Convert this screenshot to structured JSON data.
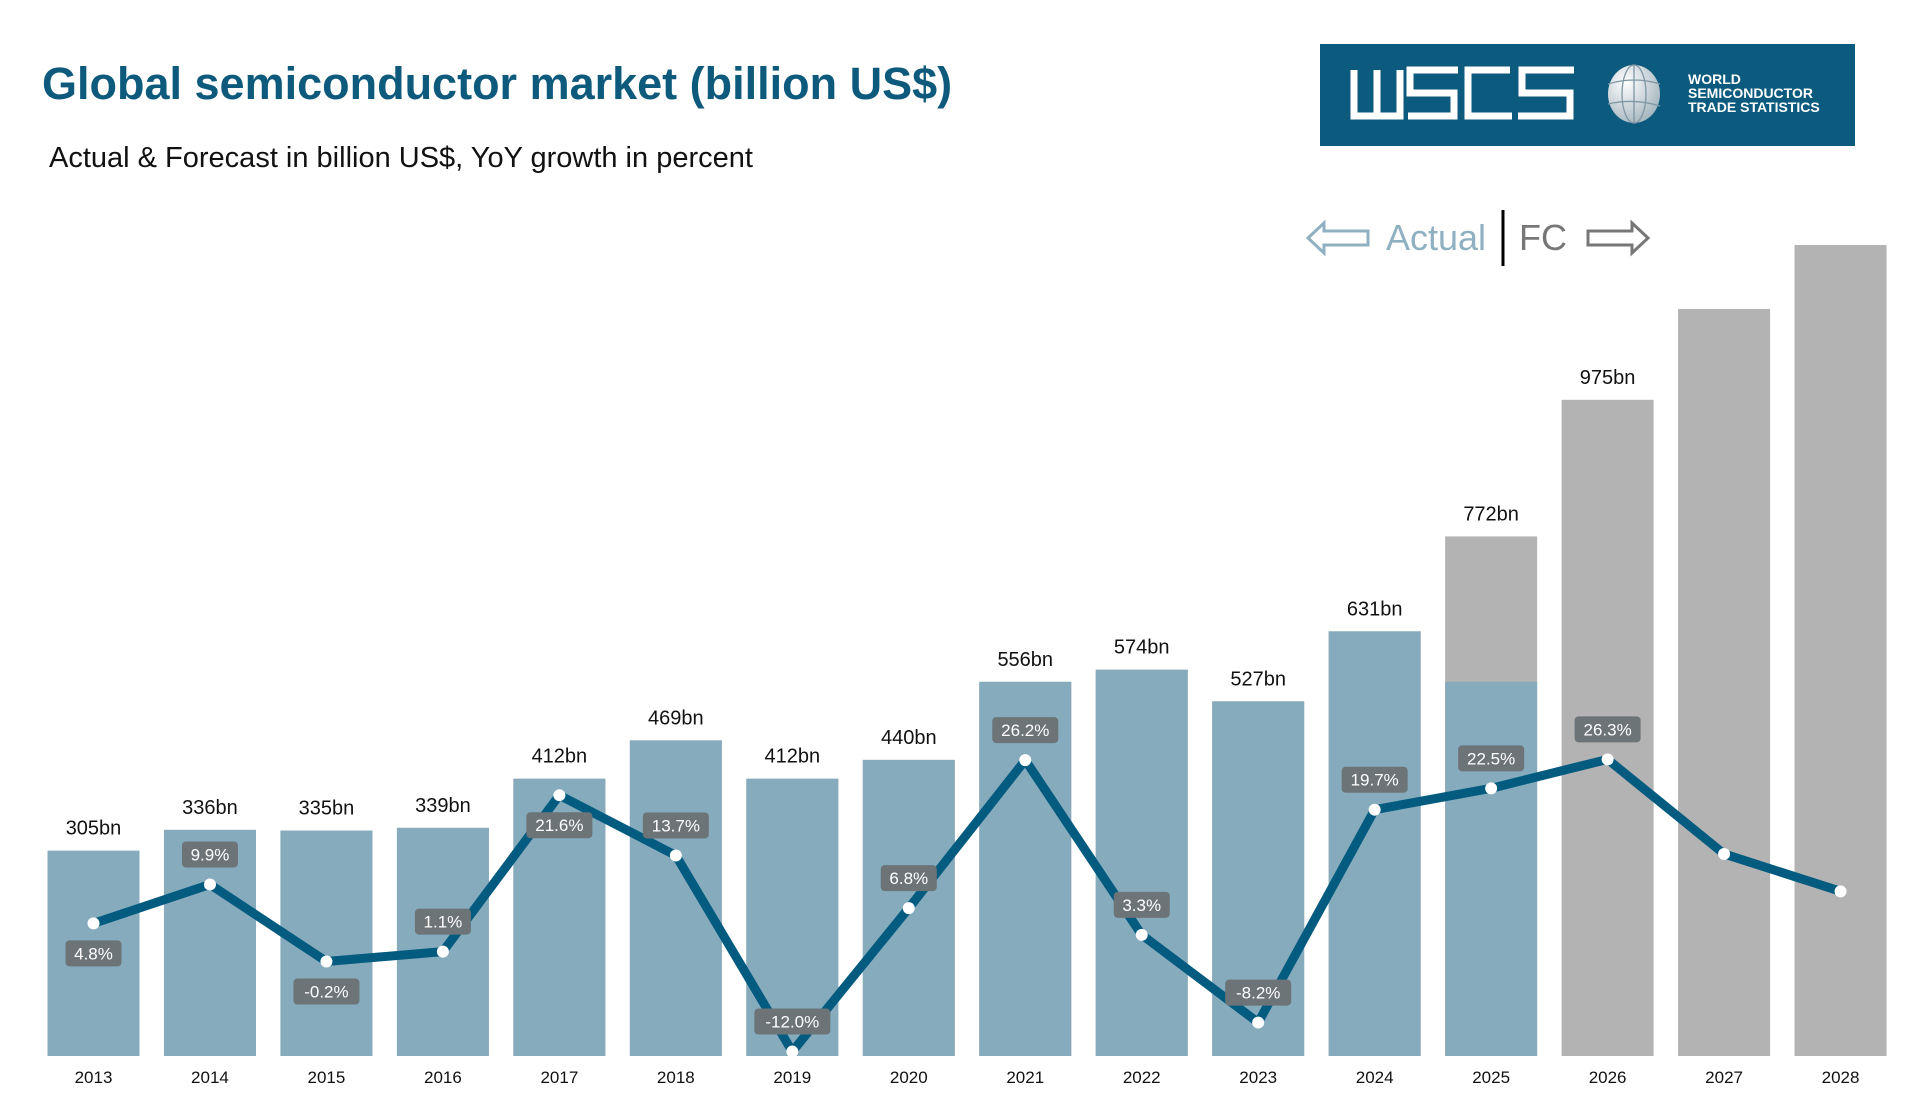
{
  "title": "Global semiconductor market (billion US$)",
  "subtitle": "Actual & Forecast in billion US$, YoY growth in percent",
  "logo": {
    "text": "WSTS",
    "tagline": "WORLD\nSEMICONDUCTOR\nTRADE STATISTICS"
  },
  "divider": {
    "actual_label": "Actual",
    "forecast_label": "FC"
  },
  "colors": {
    "actual_bar": "#85abbd",
    "forecast_bar": "#b3b3b3",
    "growth_line": "#035b80",
    "growth_label_bg": "#6c7478",
    "title": "#0d5a7c"
  },
  "chart_data": {
    "type": "bar+line",
    "title": "Global semiconductor market (billion US$)",
    "categories": [
      "2013",
      "2014",
      "2015",
      "2016",
      "2017",
      "2018",
      "2019",
      "2020",
      "2021",
      "2022",
      "2023",
      "2024",
      "2025",
      "2026",
      "2027",
      "2028"
    ],
    "series": [
      {
        "type": "bar",
        "values": [
          305,
          336,
          335,
          339,
          412,
          469,
          412,
          440,
          556,
          574,
          527,
          631,
          772,
          975,
          1110,
          1205
        ],
        "value_labels": [
          "305bn",
          "336bn",
          "335bn",
          "339bn",
          "412bn",
          "469bn",
          "412bn",
          "440bn",
          "556bn",
          "574bn",
          "527bn",
          "631bn",
          "772bn",
          "975bn",
          "",
          ""
        ],
        "actual_portion": [
          305,
          336,
          335,
          339,
          412,
          469,
          412,
          440,
          556,
          574,
          527,
          631,
          556,
          0,
          0,
          0
        ]
      },
      {
        "type": "line",
        "values": [
          4.8,
          9.9,
          -0.2,
          1.1,
          21.6,
          13.7,
          -12.0,
          6.8,
          26.2,
          3.3,
          -8.2,
          19.7,
          22.5,
          26.3,
          13.9,
          9.0
        ],
        "value_labels": [
          "4.8%",
          "9.9%",
          "-0.2%",
          "1.1%",
          "21.6%",
          "13.7%",
          "-12.0%",
          "6.8%",
          "26.2%",
          "3.3%",
          "-8.2%",
          "19.7%",
          "22.5%",
          "26.3%",
          "",
          ""
        ]
      }
    ],
    "grid": false,
    "legend": "none"
  }
}
